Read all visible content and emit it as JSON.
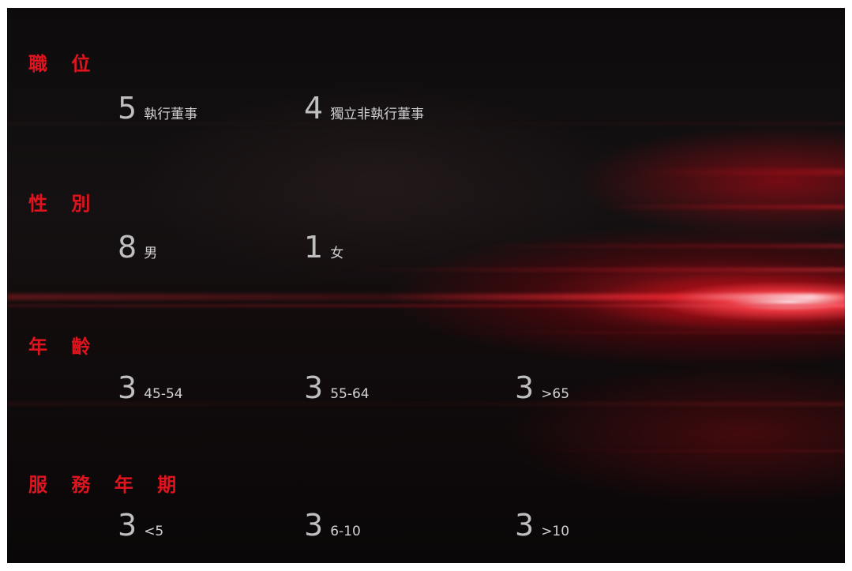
{
  "sections": [
    {
      "label": "職 位",
      "stats": [
        {
          "number": "5",
          "desc": "執行董事"
        },
        {
          "number": "4",
          "desc": "獨立非執行董事"
        }
      ]
    },
    {
      "label": "性 別",
      "stats": [
        {
          "number": "8",
          "desc": "男"
        },
        {
          "number": "1",
          "desc": "女"
        }
      ]
    },
    {
      "label": "年 齡",
      "stats": [
        {
          "number": "3",
          "desc": "45-54"
        },
        {
          "number": "3",
          "desc": "55-64"
        },
        {
          "number": "3",
          "desc": ">65"
        }
      ]
    },
    {
      "label": "服 務 年 期",
      "stats": [
        {
          "number": "3",
          "desc": "<5"
        },
        {
          "number": "3",
          "desc": "6-10"
        },
        {
          "number": "3",
          "desc": ">10"
        }
      ]
    }
  ],
  "colors": {
    "label": "#e0141e",
    "number": "#bfbfbf",
    "text": "#d2d2d2",
    "background": "#120e0f",
    "accent_glow": "#ff2a35"
  }
}
